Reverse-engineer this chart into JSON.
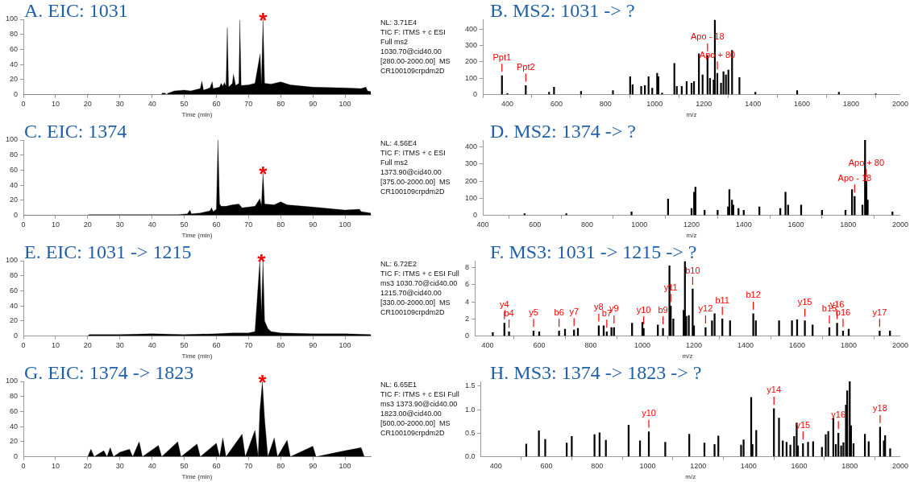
{
  "chart_data": [
    {
      "type": "area",
      "title": "A. EIC: 1031",
      "xlabel": "Time (min)",
      "xlim": [
        0,
        108
      ],
      "xticks": [
        0,
        10,
        20,
        30,
        40,
        50,
        60,
        70,
        80,
        90,
        100
      ],
      "ylim": [
        0,
        100
      ],
      "yticks": [
        0,
        20,
        40,
        60,
        80,
        100
      ],
      "color": "#000000",
      "x": [
        0,
        20,
        20.2,
        20.4,
        43,
        43.1,
        44,
        44.5,
        45,
        47,
        50,
        52,
        55,
        55.5,
        56,
        58,
        58.7,
        59,
        61,
        61.5,
        62,
        62.5,
        63,
        63.4,
        63.8,
        65,
        65.3,
        66,
        67,
        67.3,
        67.7,
        70,
        72,
        73.6,
        74,
        74.5,
        75,
        77,
        80,
        83,
        90,
        100,
        105,
        106.5,
        107,
        108
      ],
      "values": [
        0,
        0,
        1,
        0,
        0,
        2,
        2,
        0,
        2,
        5,
        6,
        5,
        8,
        18,
        6,
        9,
        17,
        8,
        10,
        15,
        11,
        16,
        11,
        89,
        10,
        15,
        27,
        12,
        15,
        99,
        12,
        13,
        15,
        54,
        12,
        100,
        15,
        14,
        17,
        13,
        10,
        9,
        8,
        10,
        5,
        4
      ],
      "annotations": [
        "NL: 3.71E4",
        "TIC F: ITMS + c ESI",
        "Full ms2",
        "1030.70@cid40.00",
        "[280.00-2000.00]  MS",
        "CR100109crpdm2D",
        {
          "text": "*",
          "x": 74.5,
          "y": 100
        }
      ]
    },
    {
      "type": "bar",
      "title": "B. MS2: 1031 -> ?",
      "xlabel": "m/z",
      "xlim": [
        300,
        2000
      ],
      "xticks": [
        400,
        600,
        800,
        1000,
        1200,
        1400,
        1600,
        1800,
        2000
      ],
      "ylim": [
        0,
        460
      ],
      "yticks": [
        0,
        100,
        200,
        300,
        400
      ],
      "color": "#000000",
      "x": [
        378,
        400,
        475,
        570,
        590,
        700,
        830,
        900,
        910,
        945,
        960,
        975,
        990,
        1010,
        1015,
        1030,
        1080,
        1090,
        1110,
        1130,
        1150,
        1160,
        1180,
        1195,
        1215,
        1225,
        1240,
        1245,
        1255,
        1270,
        1280,
        1290,
        1300,
        1315,
        1345,
        1410,
        1580,
        1750,
        1900
      ],
      "values": [
        115,
        8,
        55,
        15,
        45,
        20,
        25,
        110,
        60,
        50,
        55,
        110,
        40,
        130,
        110,
        10,
        190,
        50,
        50,
        80,
        70,
        80,
        250,
        120,
        240,
        100,
        90,
        455,
        130,
        70,
        140,
        120,
        150,
        270,
        105,
        15,
        25,
        15,
        5
      ],
      "annotations": [
        {
          "text": "Ppt1",
          "x": 378,
          "y": 115
        },
        {
          "text": "Ppt2",
          "x": 475,
          "y": 55
        },
        {
          "text": "Apo - 18",
          "x": 1215,
          "y": 240
        },
        {
          "text": "Apo + 80",
          "x": 1255,
          "y": 130
        }
      ]
    },
    {
      "type": "area",
      "title": "C. EIC: 1374",
      "xlabel": "Time (min)",
      "xlim": [
        0,
        108
      ],
      "xticks": [
        0,
        10,
        20,
        30,
        40,
        50,
        60,
        70,
        80,
        90,
        100
      ],
      "ylim": [
        0,
        100
      ],
      "yticks": [
        0,
        20,
        40,
        60,
        80,
        100
      ],
      "color": "#000000",
      "x": [
        0,
        20,
        20.3,
        48,
        51,
        51.8,
        52.2,
        55,
        58,
        58.5,
        59,
        60,
        60.5,
        61,
        61.5,
        63,
        65,
        67,
        68,
        72,
        73.5,
        74,
        74.5,
        75,
        78,
        80,
        82,
        90,
        100,
        104.5,
        105,
        108
      ],
      "values": [
        0,
        0,
        1,
        1,
        2,
        7,
        2,
        3,
        6,
        10,
        5,
        8,
        100,
        15,
        12,
        12,
        14,
        15,
        10,
        12,
        22,
        13,
        56,
        15,
        14,
        18,
        14,
        11,
        7,
        8,
        5,
        3
      ],
      "annotations": [
        "NL: 4.56E4",
        "TIC F: ITMS + c ESI",
        "Full ms2",
        "1373.90@cid40.00",
        "[375.00-2000.00]  MS",
        "CR100109crpdm2D",
        {
          "text": "*",
          "x": 74.5,
          "y": 56
        }
      ]
    },
    {
      "type": "bar",
      "title": "D. MS2: 1374 -> ?",
      "xlabel": "m/z",
      "xlim": [
        400,
        2000
      ],
      "xticks": [
        400,
        600,
        800,
        1000,
        1200,
        1400,
        1600,
        1800,
        2000
      ],
      "ylim": [
        0,
        440
      ],
      "yticks": [
        0,
        100,
        200,
        300,
        400
      ],
      "color": "#000000",
      "x": [
        560,
        720,
        970,
        1110,
        1200,
        1210,
        1215,
        1250,
        1300,
        1340,
        1345,
        1355,
        1360,
        1380,
        1400,
        1460,
        1540,
        1560,
        1570,
        1620,
        1700,
        1790,
        1815,
        1825,
        1855,
        1865,
        1870,
        1875,
        1970
      ],
      "values": [
        10,
        10,
        20,
        95,
        40,
        135,
        165,
        30,
        30,
        50,
        150,
        90,
        60,
        40,
        30,
        50,
        40,
        135,
        60,
        60,
        30,
        30,
        150,
        110,
        60,
        440,
        200,
        90,
        20
      ],
      "annotations": [
        {
          "text": "Apo - 18",
          "x": 1825,
          "y": 110
        },
        {
          "text": "Apo + 80",
          "x": 1870,
          "y": 200
        }
      ]
    },
    {
      "type": "area",
      "title": "E. EIC: 1031 -> 1215",
      "xlabel": "Time (min)",
      "xlim": [
        0,
        108
      ],
      "xticks": [
        0,
        10,
        20,
        30,
        40,
        50,
        60,
        70,
        80,
        90,
        100
      ],
      "ylim": [
        0,
        100
      ],
      "yticks": [
        0,
        20,
        40,
        60,
        80,
        100
      ],
      "color": "#000000",
      "x": [
        20,
        20.5,
        30,
        40,
        50,
        60,
        65,
        70,
        72,
        73.5,
        74,
        74.5,
        75,
        76,
        77,
        80,
        90,
        100,
        108
      ],
      "values": [
        0,
        2,
        2,
        3,
        2,
        3,
        4,
        4,
        6,
        100,
        30,
        100,
        20,
        10,
        6,
        4,
        3,
        3,
        2
      ],
      "annotations": [
        "NL: 6.72E2",
        "TIC F: ITMS + c ESI Full",
        "ms3 1030.70@cid40.00",
        "1215.70@cid40.00",
        "[330.00-2000.00]  MS",
        "CR100109crpdm2D",
        {
          "text": "*",
          "x": 74,
          "y": 100
        }
      ]
    },
    {
      "type": "bar",
      "title": "F. MS3: 1031 -> 1215 -> ?",
      "xlabel": "m/z",
      "xlim": [
        350,
        2000
      ],
      "xticks": [
        400,
        600,
        800,
        1000,
        1200,
        1400,
        1600,
        1800,
        2000
      ],
      "ylim": [
        0,
        8.8
      ],
      "yticks": [
        0,
        2,
        4,
        6,
        8
      ],
      "color": "#000000",
      "x": [
        420,
        465,
        483,
        578,
        600,
        677,
        700,
        735,
        750,
        831,
        850,
        862,
        880,
        890,
        960,
        1000,
        1005,
        1060,
        1080,
        1105,
        1110,
        1120,
        1160,
        1165,
        1170,
        1180,
        1195,
        1200,
        1245,
        1270,
        1280,
        1310,
        1340,
        1430,
        1440,
        1530,
        1580,
        1600,
        1630,
        1660,
        1725,
        1755,
        1778,
        1800,
        1920,
        1960
      ],
      "values": [
        0.4,
        1.5,
        0.5,
        0.6,
        0.5,
        0.6,
        0.8,
        0.7,
        0.9,
        1.2,
        1.2,
        0.5,
        1.0,
        1.0,
        1.5,
        1.6,
        0.9,
        1.3,
        0.9,
        8.2,
        3.5,
        2,
        3,
        8.7,
        2.3,
        2.4,
        5.5,
        1.2,
        1.0,
        1.8,
        2.6,
        2,
        1.8,
        2.6,
        1.8,
        1.8,
        1.8,
        1.9,
        1.8,
        1.3,
        1.0,
        1.5,
        0.6,
        0.8,
        0.6,
        0.6
      ],
      "annotations": [
        {
          "text": "y4",
          "x": 465,
          "y": 1.5
        },
        {
          "text": "b4",
          "x": 483,
          "y": 0.5
        },
        {
          "text": "y5",
          "x": 578,
          "y": 0.6
        },
        {
          "text": "b6",
          "x": 677,
          "y": 0.6
        },
        {
          "text": "y7",
          "x": 735,
          "y": 0.7
        },
        {
          "text": "y8",
          "x": 831,
          "y": 1.2
        },
        {
          "text": "b7",
          "x": 862,
          "y": 0.5
        },
        {
          "text": "y9",
          "x": 890,
          "y": 1.0
        },
        {
          "text": "y10",
          "x": 1005,
          "y": 0.9
        },
        {
          "text": "b9",
          "x": 1080,
          "y": 0.9
        },
        {
          "text": "y11",
          "x": 1110,
          "y": 3.5
        },
        {
          "text": "b10",
          "x": 1195,
          "y": 5.5
        },
        {
          "text": "y12",
          "x": 1245,
          "y": 1.0
        },
        {
          "text": "b11",
          "x": 1310,
          "y": 2
        },
        {
          "text": "b12",
          "x": 1430,
          "y": 2.6
        },
        {
          "text": "y15",
          "x": 1630,
          "y": 1.8
        },
        {
          "text": "b15",
          "x": 1725,
          "y": 1.0
        },
        {
          "text": "y16",
          "x": 1755,
          "y": 1.5
        },
        {
          "text": "b16",
          "x": 1778,
          "y": 0.6
        },
        {
          "text": "y17",
          "x": 1920,
          "y": 0.6
        }
      ]
    },
    {
      "type": "area",
      "title": "G. EIC: 1374 -> 1823",
      "xlabel": "Time (min)",
      "xlim": [
        0,
        108
      ],
      "xticks": [
        0,
        10,
        20,
        30,
        40,
        50,
        60,
        70,
        80,
        90,
        100
      ],
      "ylim": [
        0,
        100
      ],
      "yticks": [
        0,
        20,
        40,
        60,
        80,
        100
      ],
      "color": "#000000",
      "x": [
        20,
        21,
        22,
        25,
        26,
        27,
        28,
        30,
        33,
        34,
        36,
        37,
        42,
        43,
        48,
        49,
        54,
        55,
        60,
        61,
        62,
        63,
        68,
        69,
        72,
        73,
        73.5,
        74.3,
        75,
        76,
        78,
        79,
        82,
        83,
        90,
        91,
        100,
        105,
        106,
        108
      ],
      "values": [
        0,
        10,
        0,
        8,
        0,
        12,
        0,
        6,
        10,
        0,
        20,
        0,
        15,
        0,
        20,
        0,
        17,
        0,
        18,
        0,
        25,
        0,
        30,
        0,
        35,
        0,
        60,
        100,
        50,
        0,
        25,
        0,
        22,
        0,
        14,
        0,
        8,
        12,
        0,
        0
      ],
      "annotations": [
        "NL: 6.65E1",
        "TIC F: ITMS + c ESI Full",
        "ms3 1373.90@cid40.00",
        "1823.00@cid40.00",
        "[500.00-2000.00]  MS",
        "CR100109crpdm2D",
        {
          "text": "*",
          "x": 74.3,
          "y": 100
        }
      ]
    },
    {
      "type": "bar",
      "title": "H. MS3: 1374 -> 1823 -> ?",
      "xlabel": "m/z",
      "xlim": [
        340,
        2000
      ],
      "xticks": [
        400,
        600,
        800,
        1000,
        1200,
        1400,
        1600,
        1800,
        2000
      ],
      "ylim": [
        0,
        1.6
      ],
      "yticks": [
        {
          "value": 0,
          "label": "0.0"
        },
        {
          "value": 0.5,
          "label": "0.5"
        },
        {
          "value": 1,
          "label": "1.0"
        },
        {
          "value": 1.5,
          "label": "1.5"
        }
      ],
      "color": "#000000",
      "x": [
        520,
        570,
        595,
        680,
        700,
        790,
        810,
        835,
        925,
        970,
        1005,
        1070,
        1165,
        1225,
        1265,
        1280,
        1370,
        1380,
        1410,
        1415,
        1430,
        1500,
        1520,
        1535,
        1550,
        1565,
        1580,
        1590,
        1595,
        1615,
        1635,
        1655,
        1690,
        1705,
        1715,
        1735,
        1745,
        1755,
        1766,
        1775,
        1785,
        1790,
        1800,
        1805,
        1815,
        1860,
        1875,
        1920,
        1935,
        1940,
        1960
      ],
      "values": [
        0.27,
        0.55,
        0.37,
        0.29,
        0.43,
        0.47,
        0.51,
        0.35,
        0.67,
        0.34,
        0.53,
        0.31,
        0.48,
        0.29,
        0.26,
        0.44,
        0.25,
        0.36,
        1.26,
        0.26,
        0.56,
        1.02,
        0.82,
        0.34,
        0.31,
        0.25,
        0.43,
        0.72,
        0.23,
        0.28,
        0.31,
        0.32,
        0.2,
        0.47,
        0.54,
        0.82,
        0.26,
        0.5,
        0.23,
        0.3,
        1.1,
        1.4,
        1.6,
        0.66,
        0.28,
        0.48,
        0.32,
        0.63,
        0.34,
        0.45,
        0.17
      ],
      "annotations": [
        {
          "text": "y10",
          "x": 1005,
          "y": 0.53
        },
        {
          "text": "y14",
          "x": 1500,
          "y": 1.02
        },
        {
          "text": "y15",
          "x": 1615,
          "y": 0.28
        },
        {
          "text": "y16",
          "x": 1755,
          "y": 0.5
        },
        {
          "text": "y18",
          "x": 1920,
          "y": 0.63
        }
      ]
    }
  ]
}
